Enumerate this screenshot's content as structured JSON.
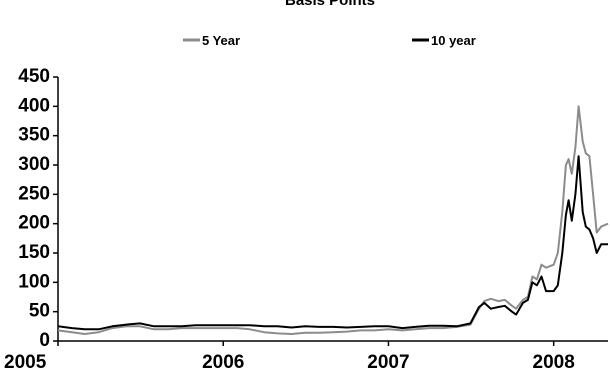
{
  "chart_data": {
    "type": "line",
    "title": "Basis Points",
    "xlabel": "",
    "ylabel": "",
    "ylim": [
      0,
      450
    ],
    "yticks": [
      0,
      50,
      100,
      150,
      200,
      250,
      300,
      350,
      400,
      450
    ],
    "xlim": [
      "2005-01-01",
      "2008-04-30"
    ],
    "xtick_labels": [
      "2005",
      "2006",
      "2007",
      "2008"
    ],
    "grid": false,
    "legend_position": "top",
    "series": [
      {
        "name": "5 Year",
        "color": "#8c8c8c",
        "points": [
          [
            "2005-01-01",
            18
          ],
          [
            "2005-02-01",
            15
          ],
          [
            "2005-03-01",
            12
          ],
          [
            "2005-04-01",
            15
          ],
          [
            "2005-05-01",
            22
          ],
          [
            "2005-06-01",
            25
          ],
          [
            "2005-07-01",
            25
          ],
          [
            "2005-08-01",
            20
          ],
          [
            "2005-09-01",
            20
          ],
          [
            "2005-10-01",
            22
          ],
          [
            "2005-11-01",
            22
          ],
          [
            "2005-12-01",
            22
          ],
          [
            "2006-01-01",
            22
          ],
          [
            "2006-02-01",
            22
          ],
          [
            "2006-03-01",
            20
          ],
          [
            "2006-04-01",
            15
          ],
          [
            "2006-05-01",
            13
          ],
          [
            "2006-06-01",
            12
          ],
          [
            "2006-07-01",
            14
          ],
          [
            "2006-08-01",
            14
          ],
          [
            "2006-09-01",
            15
          ],
          [
            "2006-10-01",
            16
          ],
          [
            "2006-11-01",
            18
          ],
          [
            "2006-12-01",
            18
          ],
          [
            "2007-01-01",
            20
          ],
          [
            "2007-02-01",
            18
          ],
          [
            "2007-03-01",
            20
          ],
          [
            "2007-04-01",
            22
          ],
          [
            "2007-05-01",
            22
          ],
          [
            "2007-06-01",
            24
          ],
          [
            "2007-07-01",
            28
          ],
          [
            "2007-07-20",
            55
          ],
          [
            "2007-08-01",
            68
          ],
          [
            "2007-08-15",
            72
          ],
          [
            "2007-09-01",
            68
          ],
          [
            "2007-09-15",
            70
          ],
          [
            "2007-10-01",
            60
          ],
          [
            "2007-10-10",
            55
          ],
          [
            "2007-10-25",
            70
          ],
          [
            "2007-11-05",
            75
          ],
          [
            "2007-11-15",
            110
          ],
          [
            "2007-11-25",
            105
          ],
          [
            "2007-12-05",
            130
          ],
          [
            "2007-12-15",
            125
          ],
          [
            "2008-01-01",
            130
          ],
          [
            "2008-01-10",
            150
          ],
          [
            "2008-01-20",
            220
          ],
          [
            "2008-01-28",
            300
          ],
          [
            "2008-02-03",
            310
          ],
          [
            "2008-02-10",
            285
          ],
          [
            "2008-02-18",
            330
          ],
          [
            "2008-02-25",
            400
          ],
          [
            "2008-03-05",
            340
          ],
          [
            "2008-03-12",
            320
          ],
          [
            "2008-03-20",
            315
          ],
          [
            "2008-03-28",
            250
          ],
          [
            "2008-04-05",
            185
          ],
          [
            "2008-04-15",
            195
          ],
          [
            "2008-04-30",
            200
          ]
        ]
      },
      {
        "name": "10 year",
        "color": "#000000",
        "points": [
          [
            "2005-01-01",
            25
          ],
          [
            "2005-02-01",
            22
          ],
          [
            "2005-03-01",
            20
          ],
          [
            "2005-04-01",
            20
          ],
          [
            "2005-05-01",
            25
          ],
          [
            "2005-06-01",
            28
          ],
          [
            "2005-07-01",
            30
          ],
          [
            "2005-08-01",
            25
          ],
          [
            "2005-09-01",
            25
          ],
          [
            "2005-10-01",
            25
          ],
          [
            "2005-11-01",
            27
          ],
          [
            "2005-12-01",
            27
          ],
          [
            "2006-01-01",
            27
          ],
          [
            "2006-02-01",
            27
          ],
          [
            "2006-03-01",
            27
          ],
          [
            "2006-04-01",
            25
          ],
          [
            "2006-05-01",
            25
          ],
          [
            "2006-06-01",
            23
          ],
          [
            "2006-07-01",
            25
          ],
          [
            "2006-08-01",
            24
          ],
          [
            "2006-09-01",
            24
          ],
          [
            "2006-10-01",
            23
          ],
          [
            "2006-11-01",
            24
          ],
          [
            "2006-12-01",
            25
          ],
          [
            "2007-01-01",
            25
          ],
          [
            "2007-02-01",
            22
          ],
          [
            "2007-03-01",
            24
          ],
          [
            "2007-04-01",
            26
          ],
          [
            "2007-05-01",
            26
          ],
          [
            "2007-06-01",
            25
          ],
          [
            "2007-07-01",
            30
          ],
          [
            "2007-07-20",
            58
          ],
          [
            "2007-08-01",
            65
          ],
          [
            "2007-08-15",
            55
          ],
          [
            "2007-09-01",
            58
          ],
          [
            "2007-09-15",
            60
          ],
          [
            "2007-10-01",
            50
          ],
          [
            "2007-10-10",
            45
          ],
          [
            "2007-10-25",
            65
          ],
          [
            "2007-11-05",
            70
          ],
          [
            "2007-11-15",
            100
          ],
          [
            "2007-11-25",
            95
          ],
          [
            "2007-12-05",
            110
          ],
          [
            "2007-12-15",
            85
          ],
          [
            "2008-01-01",
            85
          ],
          [
            "2008-01-10",
            95
          ],
          [
            "2008-01-20",
            150
          ],
          [
            "2008-01-28",
            215
          ],
          [
            "2008-02-03",
            240
          ],
          [
            "2008-02-10",
            205
          ],
          [
            "2008-02-18",
            250
          ],
          [
            "2008-02-25",
            315
          ],
          [
            "2008-03-05",
            220
          ],
          [
            "2008-03-12",
            195
          ],
          [
            "2008-03-20",
            190
          ],
          [
            "2008-03-28",
            175
          ],
          [
            "2008-04-05",
            150
          ],
          [
            "2008-04-15",
            165
          ],
          [
            "2008-04-30",
            165
          ]
        ]
      }
    ]
  }
}
